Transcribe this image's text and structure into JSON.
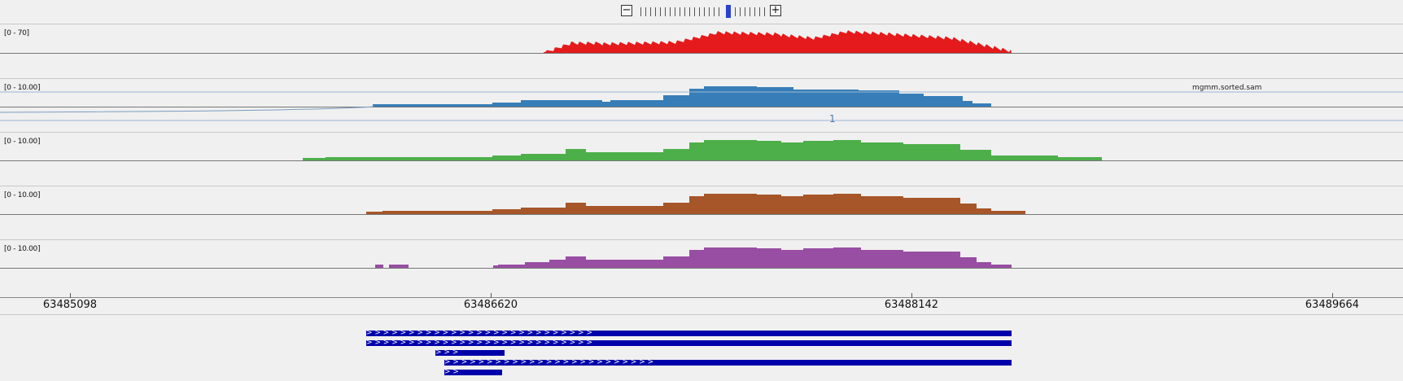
{
  "zoom": {
    "minus": "−",
    "plus": "+"
  },
  "tracks": [
    {
      "id": "track-1",
      "range": "[0 - 70]",
      "color": "#e41a1c"
    },
    {
      "id": "track-2",
      "range": "[0 - 10.00]",
      "color": "#377eb8",
      "name": "mgmm.sorted.sam"
    },
    {
      "id": "track-3",
      "range": "[0 - 10.00]",
      "color": "#4daf4a"
    },
    {
      "id": "track-4",
      "range": "[0 - 10.00]",
      "color": "#a65628"
    },
    {
      "id": "track-5",
      "range": "[0 - 10.00]",
      "color": "#984ea3"
    }
  ],
  "junction_label": "1",
  "ruler": {
    "ticks": [
      "63485098",
      "63486620",
      "63488142",
      "63489664"
    ]
  },
  "features": [
    "> > > > > > > > > > > > > > > > > > > > > > > > > > >",
    "> > > > > > > > > > > > > > > > > > > > > > > > > > >",
    "> > >",
    "> > > > > > > > > > > > > > > > > > > > > > > > >",
    "> >"
  ]
}
